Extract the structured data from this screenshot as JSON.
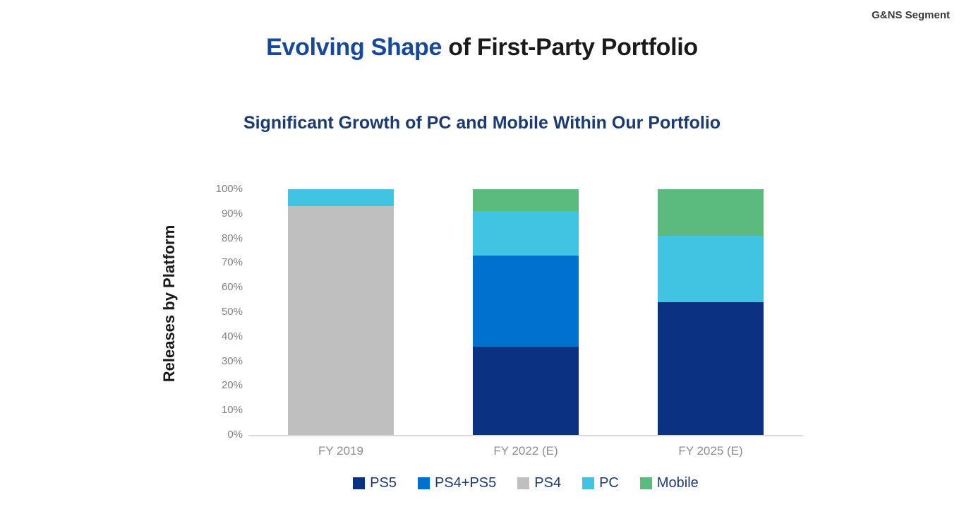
{
  "header": {
    "corner_label": "G&NS Segment",
    "title_highlight": "Evolving Shape",
    "title_rest": " of First-Party Portfolio",
    "subtitle": "Significant Growth of PC and Mobile Within Our Portfolio"
  },
  "colors": {
    "title_highlight": "#17489b",
    "title_rest": "#1a1a1a",
    "subtitle": "#1b3a6f",
    "y_axis_title": "#1a1a1a",
    "tick_label": "#808080",
    "x_label": "#8c8c8c",
    "legend_text": "#1f3a6e",
    "axis_baseline": "#d9d9d9",
    "background": "#ffffff"
  },
  "chart_data": {
    "type": "bar",
    "stacked": true,
    "title": "Significant Growth of PC and Mobile Within Our Portfolio",
    "ylabel": "Releases by Platform",
    "xlabel": "",
    "unit": "percent",
    "ylim": [
      0,
      100
    ],
    "yticks": [
      "0%",
      "10%",
      "20%",
      "30%",
      "40%",
      "50%",
      "60%",
      "70%",
      "80%",
      "90%",
      "100%"
    ],
    "grid": false,
    "legend_position": "bottom",
    "categories": [
      "FY 2019",
      "FY 2022 (E)",
      "FY 2025 (E)"
    ],
    "series": [
      {
        "name": "PS5",
        "color": "#0b3183",
        "values": [
          0,
          36,
          54
        ]
      },
      {
        "name": "PS4+PS5",
        "color": "#0071ce",
        "values": [
          0,
          37,
          0
        ]
      },
      {
        "name": "PS4",
        "color": "#bfbfbf",
        "values": [
          93,
          0,
          0
        ]
      },
      {
        "name": "PC",
        "color": "#41c4e1",
        "values": [
          7,
          18,
          27
        ]
      },
      {
        "name": "Mobile",
        "color": "#5bba7e",
        "values": [
          0,
          9,
          19
        ]
      }
    ]
  }
}
